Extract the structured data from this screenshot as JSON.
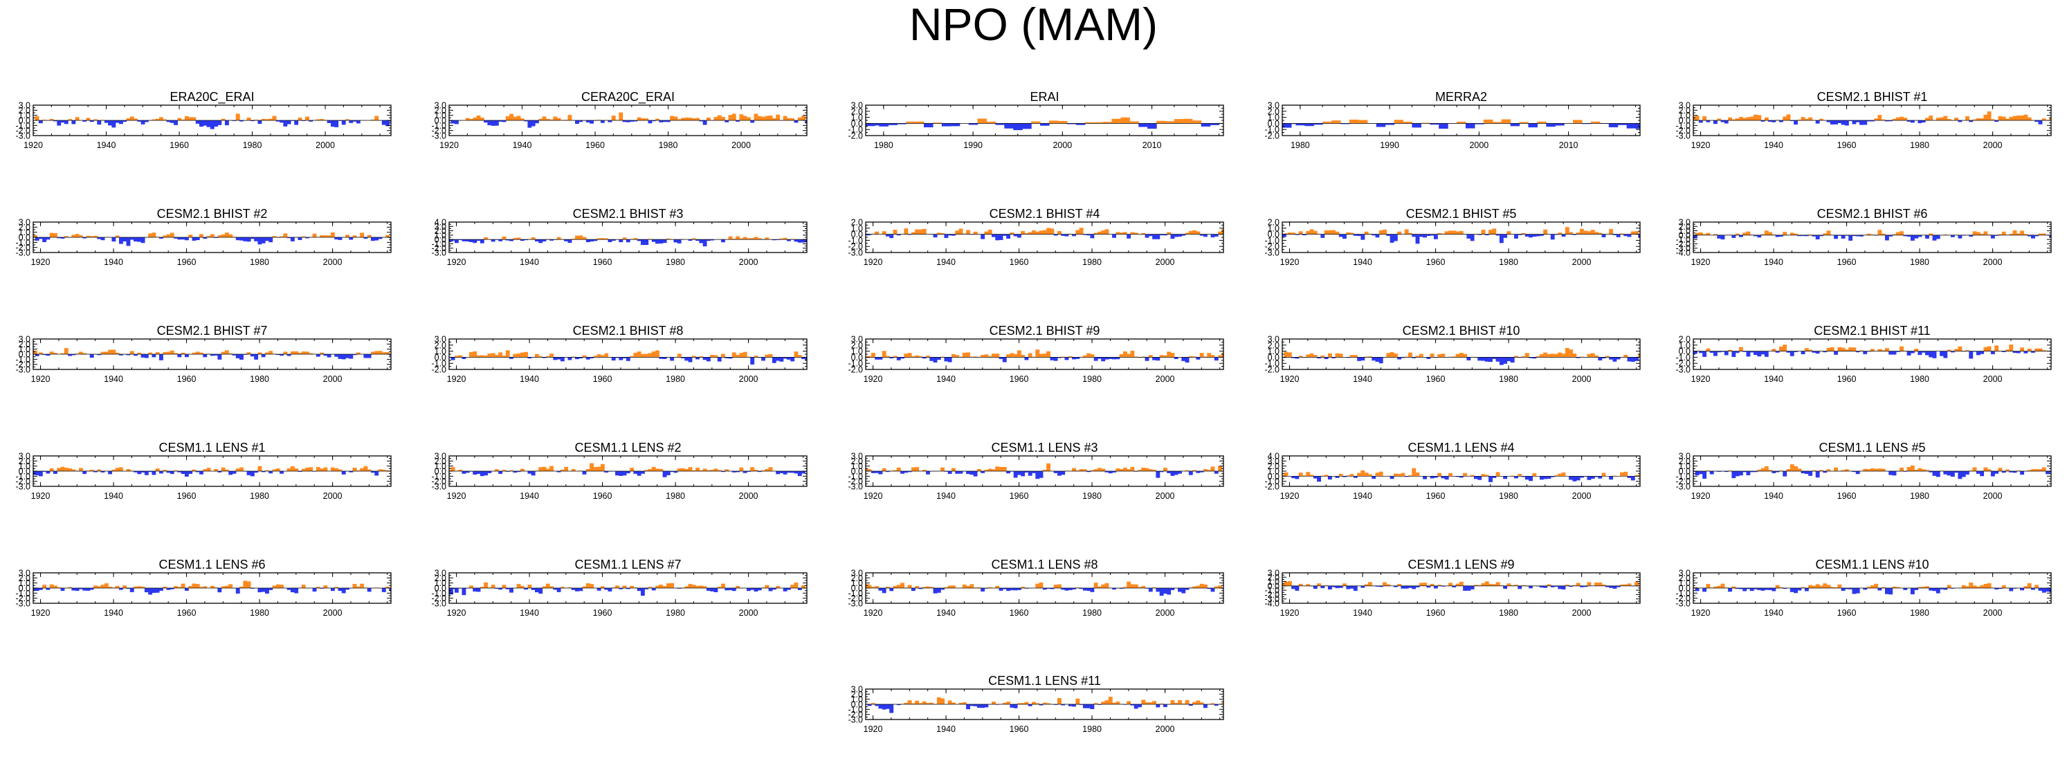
{
  "title": "NPO (MAM)",
  "colors": {
    "positive": "#ff8a1f",
    "negative": "#2b38ee",
    "axis": "#000000"
  },
  "chart_data": [
    {
      "type": "area",
      "title": "ERA20C_ERAI",
      "xlim": [
        1920,
        2018
      ],
      "x_ticks": [
        1920,
        1940,
        1960,
        1980,
        2000
      ],
      "y_ticks": [
        3.0,
        2.0,
        1.0,
        0.0,
        -1.0,
        -2.0,
        -3.0
      ],
      "ylim": [
        -3,
        3
      ],
      "seed": 1,
      "amplitude": 1.3,
      "bias": -0.15,
      "values": []
    },
    {
      "type": "area",
      "title": "CERA20C_ERAI",
      "xlim": [
        1920,
        2018
      ],
      "x_ticks": [
        1920,
        1940,
        1960,
        1980,
        2000
      ],
      "y_ticks": [
        3.0,
        2.0,
        1.0,
        0.0,
        -1.0,
        -2.0,
        -3.0
      ],
      "ylim": [
        -3,
        3
      ],
      "seed": 2,
      "amplitude": 1.2,
      "bias": 0.1,
      "values": []
    },
    {
      "type": "area",
      "title": "ERAI",
      "xlim": [
        1978,
        2018
      ],
      "x_ticks": [
        1980,
        1990,
        2000,
        2010
      ],
      "y_ticks": [
        3.0,
        2.0,
        1.0,
        0.0,
        -1.0,
        -2.0
      ],
      "ylim": [
        -2,
        3
      ],
      "seed": 3,
      "amplitude": 1.0,
      "bias": 0.0,
      "values": []
    },
    {
      "type": "area",
      "title": "MERRA2",
      "xlim": [
        1978,
        2018
      ],
      "x_ticks": [
        1980,
        1990,
        2000,
        2010
      ],
      "y_ticks": [
        3.0,
        2.0,
        1.0,
        0.0,
        -1.0,
        -2.0
      ],
      "ylim": [
        -2,
        3
      ],
      "seed": 4,
      "amplitude": 1.0,
      "bias": 0.0,
      "values": []
    },
    {
      "type": "area",
      "title": "CESM2.1 BHIST #1",
      "xlim": [
        1918,
        2016
      ],
      "x_ticks": [
        1920,
        1940,
        1960,
        1980,
        2000
      ],
      "y_ticks": [
        3.0,
        2.0,
        1.0,
        0.0,
        -1.0,
        -2.0,
        -3.0
      ],
      "ylim": [
        -3,
        3
      ],
      "seed": 5,
      "amplitude": 1.2,
      "bias": 0.1,
      "values": []
    },
    {
      "type": "area",
      "title": "CESM2.1 BHIST #2",
      "xlim": [
        1918,
        2016
      ],
      "x_ticks": [
        1920,
        1940,
        1960,
        1980,
        2000
      ],
      "y_ticks": [
        3.0,
        2.0,
        1.0,
        0.0,
        -1.0,
        -2.0,
        -3.0
      ],
      "ylim": [
        -3,
        3
      ],
      "seed": 6,
      "amplitude": 1.1,
      "bias": 0.0,
      "values": []
    },
    {
      "type": "area",
      "title": "CESM2.1 BHIST #3",
      "xlim": [
        1918,
        2016
      ],
      "x_ticks": [
        1920,
        1940,
        1960,
        1980,
        2000
      ],
      "y_ticks": [
        4.0,
        3.0,
        2.0,
        1.0,
        0.0,
        -1.0,
        -2.0,
        -3.0
      ],
      "ylim": [
        -3,
        4
      ],
      "seed": 7,
      "amplitude": 1.1,
      "bias": 0.0,
      "values": []
    },
    {
      "type": "area",
      "title": "CESM2.1 BHIST #4",
      "xlim": [
        1918,
        2016
      ],
      "x_ticks": [
        1920,
        1940,
        1960,
        1980,
        2000
      ],
      "y_ticks": [
        2.0,
        1.0,
        0.0,
        -1.0,
        -2.0,
        -3.0
      ],
      "ylim": [
        -3,
        2
      ],
      "seed": 8,
      "amplitude": 1.1,
      "bias": 0.0,
      "values": []
    },
    {
      "type": "area",
      "title": "CESM2.1 BHIST #5",
      "xlim": [
        1918,
        2016
      ],
      "x_ticks": [
        1920,
        1940,
        1960,
        1980,
        2000
      ],
      "y_ticks": [
        2.0,
        1.0,
        0.0,
        -1.0,
        -2.0,
        -3.0
      ],
      "ylim": [
        -3,
        2
      ],
      "seed": 9,
      "amplitude": 1.1,
      "bias": 0.0,
      "values": []
    },
    {
      "type": "area",
      "title": "CESM2.1 BHIST #6",
      "xlim": [
        1918,
        2016
      ],
      "x_ticks": [
        1920,
        1940,
        1960,
        1980,
        2000
      ],
      "y_ticks": [
        3.0,
        2.0,
        1.0,
        0.0,
        -1.0,
        -2.0,
        -3.0,
        -4.0
      ],
      "ylim": [
        -4,
        3
      ],
      "seed": 10,
      "amplitude": 1.2,
      "bias": 0.1,
      "values": []
    },
    {
      "type": "area",
      "title": "CESM2.1 BHIST #7",
      "xlim": [
        1918,
        2016
      ],
      "x_ticks": [
        1920,
        1940,
        1960,
        1980,
        2000
      ],
      "y_ticks": [
        3.0,
        2.0,
        1.0,
        0.0,
        -1.0,
        -2.0,
        -3.0
      ],
      "ylim": [
        -3,
        3
      ],
      "seed": 11,
      "amplitude": 1.1,
      "bias": 0.05,
      "values": []
    },
    {
      "type": "area",
      "title": "CESM2.1 BHIST #8",
      "xlim": [
        1918,
        2016
      ],
      "x_ticks": [
        1920,
        1940,
        1960,
        1980,
        2000
      ],
      "y_ticks": [
        3.0,
        2.0,
        1.0,
        0.0,
        -1.0,
        -2.0
      ],
      "ylim": [
        -2,
        3
      ],
      "seed": 12,
      "amplitude": 1.0,
      "bias": 0.1,
      "values": []
    },
    {
      "type": "area",
      "title": "CESM2.1 BHIST #9",
      "xlim": [
        1918,
        2016
      ],
      "x_ticks": [
        1920,
        1940,
        1960,
        1980,
        2000
      ],
      "y_ticks": [
        3.0,
        2.0,
        1.0,
        0.0,
        -1.0,
        -2.0
      ],
      "ylim": [
        -2,
        3
      ],
      "seed": 13,
      "amplitude": 1.0,
      "bias": 0.1,
      "values": []
    },
    {
      "type": "area",
      "title": "CESM2.1 BHIST #10",
      "xlim": [
        1918,
        2016
      ],
      "x_ticks": [
        1920,
        1940,
        1960,
        1980,
        2000
      ],
      "y_ticks": [
        3.0,
        2.0,
        1.0,
        0.0,
        -1.0,
        -2.0
      ],
      "ylim": [
        -2,
        3
      ],
      "seed": 14,
      "amplitude": 1.0,
      "bias": 0.05,
      "values": []
    },
    {
      "type": "area",
      "title": "CESM2.1 BHIST #11",
      "xlim": [
        1918,
        2016
      ],
      "x_ticks": [
        1920,
        1940,
        1960,
        1980,
        2000
      ],
      "y_ticks": [
        2.0,
        1.0,
        0.0,
        -1.0,
        -2.0,
        -3.0
      ],
      "ylim": [
        -3,
        2
      ],
      "seed": 15,
      "amplitude": 1.1,
      "bias": 0.0,
      "values": []
    },
    {
      "type": "area",
      "title": "CESM1.1 LENS #1",
      "xlim": [
        1918,
        2016
      ],
      "x_ticks": [
        1920,
        1940,
        1960,
        1980,
        2000
      ],
      "y_ticks": [
        3.0,
        2.0,
        1.0,
        0.0,
        -1.0,
        -2.0,
        -3.0
      ],
      "ylim": [
        -3,
        3
      ],
      "seed": 16,
      "amplitude": 1.1,
      "bias": 0.0,
      "values": []
    },
    {
      "type": "area",
      "title": "CESM1.1 LENS #2",
      "xlim": [
        1918,
        2016
      ],
      "x_ticks": [
        1920,
        1940,
        1960,
        1980,
        2000
      ],
      "y_ticks": [
        3.0,
        2.0,
        1.0,
        0.0,
        -1.0,
        -2.0,
        -3.0
      ],
      "ylim": [
        -3,
        3
      ],
      "seed": 17,
      "amplitude": 1.1,
      "bias": 0.05,
      "values": []
    },
    {
      "type": "area",
      "title": "CESM1.1 LENS #3",
      "xlim": [
        1918,
        2016
      ],
      "x_ticks": [
        1920,
        1940,
        1960,
        1980,
        2000
      ],
      "y_ticks": [
        3.0,
        2.0,
        1.0,
        0.0,
        -1.0,
        -2.0,
        -3.0
      ],
      "ylim": [
        -3,
        3
      ],
      "seed": 18,
      "amplitude": 1.1,
      "bias": 0.0,
      "values": []
    },
    {
      "type": "area",
      "title": "CESM1.1 LENS #4",
      "xlim": [
        1918,
        2016
      ],
      "x_ticks": [
        1920,
        1940,
        1960,
        1980,
        2000
      ],
      "y_ticks": [
        4.0,
        3.0,
        2.0,
        1.0,
        0.0,
        -1.0,
        -2.0
      ],
      "ylim": [
        -2,
        4
      ],
      "seed": 19,
      "amplitude": 1.1,
      "bias": 0.15,
      "values": []
    },
    {
      "type": "area",
      "title": "CESM1.1 LENS #5",
      "xlim": [
        1918,
        2016
      ],
      "x_ticks": [
        1920,
        1940,
        1960,
        1980,
        2000
      ],
      "y_ticks": [
        3.0,
        2.0,
        1.0,
        0.0,
        -1.0,
        -2.0,
        -3.0
      ],
      "ylim": [
        -3,
        3
      ],
      "seed": 20,
      "amplitude": 1.1,
      "bias": 0.0,
      "values": []
    },
    {
      "type": "area",
      "title": "CESM1.1 LENS #6",
      "xlim": [
        1918,
        2016
      ],
      "x_ticks": [
        1920,
        1940,
        1960,
        1980,
        2000
      ],
      "y_ticks": [
        3.0,
        2.0,
        1.0,
        0.0,
        -1.0,
        -2.0,
        -3.0
      ],
      "ylim": [
        -3,
        3
      ],
      "seed": 21,
      "amplitude": 1.1,
      "bias": 0.0,
      "values": []
    },
    {
      "type": "area",
      "title": "CESM1.1 LENS #7",
      "xlim": [
        1918,
        2016
      ],
      "x_ticks": [
        1920,
        1940,
        1960,
        1980,
        2000
      ],
      "y_ticks": [
        3.0,
        2.0,
        1.0,
        0.0,
        -1.0,
        -2.0,
        -3.0
      ],
      "ylim": [
        -3,
        3
      ],
      "seed": 22,
      "amplitude": 1.1,
      "bias": 0.0,
      "values": []
    },
    {
      "type": "area",
      "title": "CESM1.1 LENS #8",
      "xlim": [
        1918,
        2016
      ],
      "x_ticks": [
        1920,
        1940,
        1960,
        1980,
        2000
      ],
      "y_ticks": [
        3.0,
        2.0,
        1.0,
        0.0,
        -1.0,
        -2.0,
        -3.0
      ],
      "ylim": [
        -3,
        3
      ],
      "seed": 23,
      "amplitude": 1.1,
      "bias": 0.0,
      "values": []
    },
    {
      "type": "area",
      "title": "CESM1.1 LENS #9",
      "xlim": [
        1918,
        2016
      ],
      "x_ticks": [
        1920,
        1940,
        1960,
        1980,
        2000
      ],
      "y_ticks": [
        3.0,
        2.0,
        1.0,
        0.0,
        -1.0,
        -2.0,
        -3.0,
        -4.0
      ],
      "ylim": [
        -4,
        3
      ],
      "seed": 24,
      "amplitude": 1.2,
      "bias": 0.0,
      "values": []
    },
    {
      "type": "area",
      "title": "CESM1.1 LENS #10",
      "xlim": [
        1918,
        2016
      ],
      "x_ticks": [
        1920,
        1940,
        1960,
        1980,
        2000
      ],
      "y_ticks": [
        3.0,
        2.0,
        1.0,
        0.0,
        -1.0,
        -2.0,
        -3.0
      ],
      "ylim": [
        -3,
        3
      ],
      "seed": 25,
      "amplitude": 1.1,
      "bias": 0.0,
      "values": []
    },
    {
      "type": "area",
      "title": "CESM1.1 LENS #11",
      "xlim": [
        1918,
        2016
      ],
      "x_ticks": [
        1920,
        1940,
        1960,
        1980,
        2000
      ],
      "y_ticks": [
        3.0,
        2.0,
        1.0,
        0.0,
        -1.0,
        -2.0,
        -3.0
      ],
      "ylim": [
        -3,
        3
      ],
      "seed": 26,
      "amplitude": 1.1,
      "bias": 0.0,
      "values": []
    }
  ]
}
